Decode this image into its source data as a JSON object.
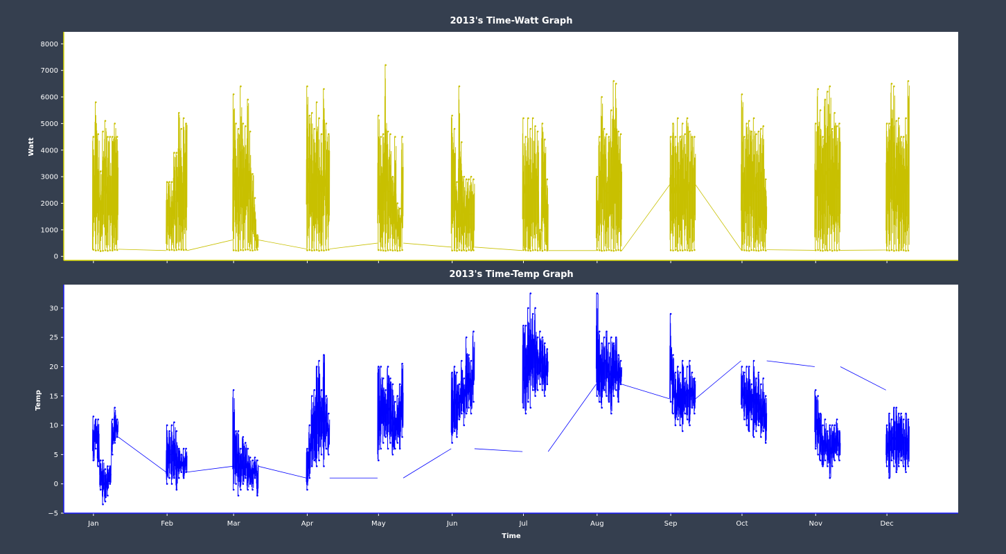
{
  "chart_data": [
    {
      "type": "line",
      "title": "2013's Time-Watt Graph",
      "xlabel": "",
      "ylabel": "Watt",
      "ylim": [
        -150,
        8450
      ],
      "yticks": [
        0,
        1000,
        2000,
        3000,
        4000,
        5000,
        6000,
        7000,
        8000
      ],
      "grid": false,
      "legend": "none",
      "color": "#c8c000",
      "frame_color": "#d6d600",
      "series": [
        {
          "x": [
            "2013-01-01",
            "2013-01-02",
            "2013-01-03",
            "2013-01-04",
            "2013-01-05",
            "2013-01-06",
            "2013-01-07",
            "2013-01-08",
            "2013-01-09",
            "2013-01-10",
            "2013-01-11",
            "2013-02-01",
            "2013-02-02",
            "2013-02-03",
            "2013-02-04",
            "2013-02-05",
            "2013-02-06",
            "2013-02-07",
            "2013-02-08",
            "2013-02-09",
            "2013-03-01",
            "2013-03-02",
            "2013-03-03",
            "2013-03-04",
            "2013-03-05",
            "2013-03-06",
            "2013-03-07",
            "2013-03-08",
            "2013-03-09",
            "2013-03-10",
            "2013-03-11",
            "2013-04-01",
            "2013-04-02",
            "2013-04-03",
            "2013-04-04",
            "2013-04-05",
            "2013-04-06",
            "2013-04-07",
            "2013-04-08",
            "2013-04-09",
            "2013-04-10",
            "2013-05-01",
            "2013-05-02",
            "2013-05-03",
            "2013-05-04",
            "2013-05-05",
            "2013-05-06",
            "2013-05-07",
            "2013-05-08",
            "2013-05-09",
            "2013-05-10",
            "2013-05-11",
            "2013-06-01",
            "2013-06-02",
            "2013-06-03",
            "2013-06-04",
            "2013-06-05",
            "2013-06-06",
            "2013-06-07",
            "2013-06-08",
            "2013-06-09",
            "2013-06-10",
            "2013-07-01",
            "2013-07-02",
            "2013-07-03",
            "2013-07-04",
            "2013-07-05",
            "2013-07-06",
            "2013-07-07",
            "2013-07-08",
            "2013-07-09",
            "2013-07-10",
            "2013-07-11",
            "2013-08-01",
            "2013-08-02",
            "2013-08-03",
            "2013-08-04",
            "2013-08-05",
            "2013-08-06",
            "2013-08-07",
            "2013-08-08",
            "2013-08-09",
            "2013-08-10",
            "2013-08-11",
            "2013-09-01",
            "2013-09-02",
            "2013-09-03",
            "2013-09-04",
            "2013-09-05",
            "2013-09-06",
            "2013-09-07",
            "2013-09-08",
            "2013-09-09",
            "2013-09-10",
            "2013-09-11",
            "2013-10-01",
            "2013-10-02",
            "2013-10-03",
            "2013-10-04",
            "2013-10-05",
            "2013-10-06",
            "2013-10-07",
            "2013-10-08",
            "2013-10-09",
            "2013-10-10",
            "2013-10-11",
            "2013-11-01",
            "2013-11-02",
            "2013-11-03",
            "2013-11-04",
            "2013-11-05",
            "2013-11-06",
            "2013-11-07",
            "2013-11-08",
            "2013-11-09",
            "2013-11-10",
            "2013-11-11",
            "2013-12-01",
            "2013-12-02",
            "2013-12-03",
            "2013-12-04",
            "2013-12-05",
            "2013-12-06",
            "2013-12-07",
            "2013-12-08",
            "2013-12-09",
            "2013-12-10"
          ],
          "high": [
            4500,
            5800,
            4600,
            3200,
            4700,
            5100,
            4500,
            4500,
            4500,
            5000,
            4500,
            2800,
            2800,
            2800,
            3900,
            3900,
            5400,
            4800,
            5200,
            5000,
            6100,
            5000,
            4800,
            6400,
            5000,
            4900,
            5900,
            4700,
            3100,
            2200,
            800,
            6400,
            5300,
            5400,
            4800,
            5800,
            5200,
            4600,
            6300,
            5000,
            4600,
            5300,
            4500,
            4600,
            7200,
            4700,
            4600,
            3000,
            4500,
            2000,
            1800,
            4500,
            5300,
            4800,
            2800,
            6400,
            4300,
            3000,
            2900,
            2900,
            3000,
            2900,
            5200,
            4500,
            5200,
            4800,
            5200,
            4900,
            4700,
            1000,
            5000,
            4400,
            2900,
            3000,
            4500,
            6000,
            4800,
            4600,
            4500,
            5500,
            6600,
            6500,
            4700,
            4600,
            4500,
            5000,
            4500,
            5200,
            4500,
            5000,
            4600,
            5200,
            4700,
            4500,
            4500,
            6100,
            4500,
            5000,
            5100,
            4700,
            5200,
            4600,
            4700,
            4800,
            4900,
            2900,
            5000,
            6300,
            5500,
            4500,
            5900,
            6200,
            6400,
            4800,
            5400,
            4900,
            5000,
            5000,
            5000,
            6500,
            6400,
            5100,
            5200,
            4500,
            4500,
            5200,
            6600
          ],
          "low": [
            250,
            220,
            230,
            200,
            210,
            230,
            210,
            230,
            220,
            250,
            240,
            260,
            240,
            250,
            230,
            240,
            260,
            250,
            240,
            250,
            230,
            220,
            210,
            240,
            230,
            250,
            260,
            230,
            220,
            240,
            250,
            230,
            240,
            220,
            230,
            240,
            210,
            230,
            220,
            240,
            250,
            240,
            230,
            220,
            210,
            230,
            240,
            220,
            230,
            210,
            220,
            240,
            220,
            230,
            210,
            240,
            220,
            230,
            210,
            240,
            220,
            230,
            240,
            230,
            220,
            210,
            230,
            240,
            220,
            230,
            210,
            240,
            220,
            240,
            230,
            210,
            220,
            230,
            240,
            220,
            210,
            230,
            240,
            220,
            230,
            220,
            240,
            210,
            230,
            220,
            240,
            230,
            210,
            220,
            240,
            240,
            230,
            220,
            210,
            240,
            230,
            220,
            210,
            230,
            240,
            220,
            230,
            240,
            220,
            210,
            230,
            220,
            240,
            210,
            230,
            220,
            240,
            230,
            220,
            240,
            210,
            230,
            220,
            240,
            230,
            210,
            220
          ],
          "gap_values": [
            270,
            220,
            620,
            280,
            500,
            350,
            220,
            220,
            2700,
            250,
            230,
            240,
            220,
            560,
            330
          ]
        }
      ]
    },
    {
      "type": "line",
      "title": "2013's Time-Temp Graph",
      "xlabel": "Time",
      "ylabel": "Temp",
      "ylim": [
        -5,
        34
      ],
      "yticks": [
        -5,
        0,
        5,
        10,
        15,
        20,
        25,
        30
      ],
      "categories": [
        "Jan",
        "Feb",
        "Mar",
        "Apr",
        "May",
        "Jun",
        "Jul",
        "Aug",
        "Sep",
        "Oct",
        "Nov",
        "Dec"
      ],
      "grid": false,
      "legend": "none",
      "color": "#0000ff",
      "frame_color": "#1a1aff",
      "series": [
        {
          "x": [
            "2013-01-01",
            "2013-01-02",
            "2013-01-03",
            "2013-01-04",
            "2013-01-05",
            "2013-01-06",
            "2013-01-07",
            "2013-01-08",
            "2013-01-09",
            "2013-01-10",
            "2013-01-11",
            "2013-02-01",
            "2013-02-02",
            "2013-02-03",
            "2013-02-04",
            "2013-02-05",
            "2013-02-06",
            "2013-02-07",
            "2013-02-08",
            "2013-02-09",
            "2013-03-01",
            "2013-03-02",
            "2013-03-03",
            "2013-03-04",
            "2013-03-05",
            "2013-03-06",
            "2013-03-07",
            "2013-03-08",
            "2013-03-09",
            "2013-03-10",
            "2013-03-11",
            "2013-04-01",
            "2013-04-02",
            "2013-04-03",
            "2013-04-04",
            "2013-04-05",
            "2013-04-06",
            "2013-04-07",
            "2013-04-08",
            "2013-04-09",
            "2013-04-10",
            "2013-05-01",
            "2013-05-02",
            "2013-05-03",
            "2013-05-04",
            "2013-05-05",
            "2013-05-06",
            "2013-05-07",
            "2013-05-08",
            "2013-05-09",
            "2013-05-10",
            "2013-05-11",
            "2013-06-01",
            "2013-06-02",
            "2013-06-03",
            "2013-06-04",
            "2013-06-05",
            "2013-06-06",
            "2013-06-07",
            "2013-06-08",
            "2013-06-09",
            "2013-06-10",
            "2013-07-01",
            "2013-07-02",
            "2013-07-03",
            "2013-07-04",
            "2013-07-05",
            "2013-07-06",
            "2013-07-07",
            "2013-07-08",
            "2013-07-09",
            "2013-07-10",
            "2013-07-11",
            "2013-08-01",
            "2013-08-02",
            "2013-08-03",
            "2013-08-04",
            "2013-08-05",
            "2013-08-06",
            "2013-08-07",
            "2013-08-08",
            "2013-08-09",
            "2013-08-10",
            "2013-08-11",
            "2013-09-01",
            "2013-09-02",
            "2013-09-03",
            "2013-09-04",
            "2013-09-05",
            "2013-09-06",
            "2013-09-07",
            "2013-09-08",
            "2013-09-09",
            "2013-09-10",
            "2013-09-11",
            "2013-10-01",
            "2013-10-02",
            "2013-10-03",
            "2013-10-04",
            "2013-10-05",
            "2013-10-06",
            "2013-10-07",
            "2013-10-08",
            "2013-10-09",
            "2013-10-10",
            "2013-10-11",
            "2013-11-01",
            "2013-11-02",
            "2013-11-03",
            "2013-11-04",
            "2013-11-05",
            "2013-11-06",
            "2013-11-07",
            "2013-11-08",
            "2013-11-09",
            "2013-11-10",
            "2013-11-11",
            "2013-12-01",
            "2013-12-02",
            "2013-12-03",
            "2013-12-04",
            "2013-12-05",
            "2013-12-06",
            "2013-12-07",
            "2013-12-08",
            "2013-12-09",
            "2013-12-10"
          ],
          "high": [
            11.5,
            11,
            11,
            4,
            4,
            2.5,
            3,
            3,
            11,
            13,
            11,
            10,
            9,
            10,
            10.5,
            9,
            6,
            5,
            6,
            6,
            16,
            9,
            9,
            6,
            8,
            7,
            6,
            4.5,
            4,
            4.5,
            4,
            6,
            10,
            15,
            16,
            20,
            21,
            16,
            22,
            15,
            12,
            20,
            20,
            18,
            16,
            20,
            18,
            17,
            14,
            15,
            17,
            20.5,
            19,
            20,
            19,
            17,
            21,
            18,
            25,
            22,
            21,
            26,
            27,
            27,
            30,
            32.5,
            29,
            30,
            25,
            26,
            25,
            24,
            23,
            32.5,
            26,
            24,
            25,
            26,
            24,
            25,
            24,
            25,
            22,
            21,
            29,
            22,
            19,
            20,
            19,
            21,
            18,
            20,
            21,
            19,
            18,
            20,
            19,
            20,
            20,
            17,
            21,
            18,
            19,
            17,
            18,
            15,
            16,
            15,
            12,
            10,
            11,
            9,
            10,
            10,
            10,
            11,
            9,
            10,
            12,
            11,
            13,
            13,
            12,
            12,
            11,
            12,
            11
          ],
          "low": [
            4,
            6,
            3,
            -1,
            -3.5,
            -3,
            -2,
            0,
            5,
            7,
            8,
            0,
            1,
            0,
            1,
            -1,
            1,
            2,
            1,
            2,
            -1,
            0,
            -2,
            -1,
            0,
            1,
            -1,
            0,
            -1,
            1,
            -2,
            -1,
            1,
            3,
            4,
            3,
            4,
            5,
            3,
            6,
            5,
            4,
            6,
            7,
            8,
            6,
            7,
            5,
            6,
            7,
            6,
            8,
            7,
            9,
            8,
            11,
            12,
            10,
            12,
            13,
            12,
            14,
            13,
            12,
            14,
            13,
            16,
            15,
            16,
            17,
            16,
            15,
            17,
            15,
            14,
            13,
            16,
            15,
            14,
            12,
            15,
            16,
            14,
            17,
            14,
            12,
            10,
            11,
            10,
            9,
            12,
            11,
            10,
            13,
            12,
            13,
            11,
            10,
            9,
            11,
            8,
            9,
            10,
            8,
            9,
            7,
            6,
            5,
            4,
            3,
            4,
            3,
            1,
            3,
            4,
            5,
            4,
            3,
            1,
            4,
            3,
            2,
            3,
            4,
            3,
            2,
            3
          ],
          "gap_values": [
            8,
            2,
            3,
            1,
            1,
            6,
            5.5,
            17,
            14.5,
            21,
            20,
            16,
            14.5,
            13.5,
            13,
            5.5,
            5
          ]
        }
      ]
    }
  ]
}
